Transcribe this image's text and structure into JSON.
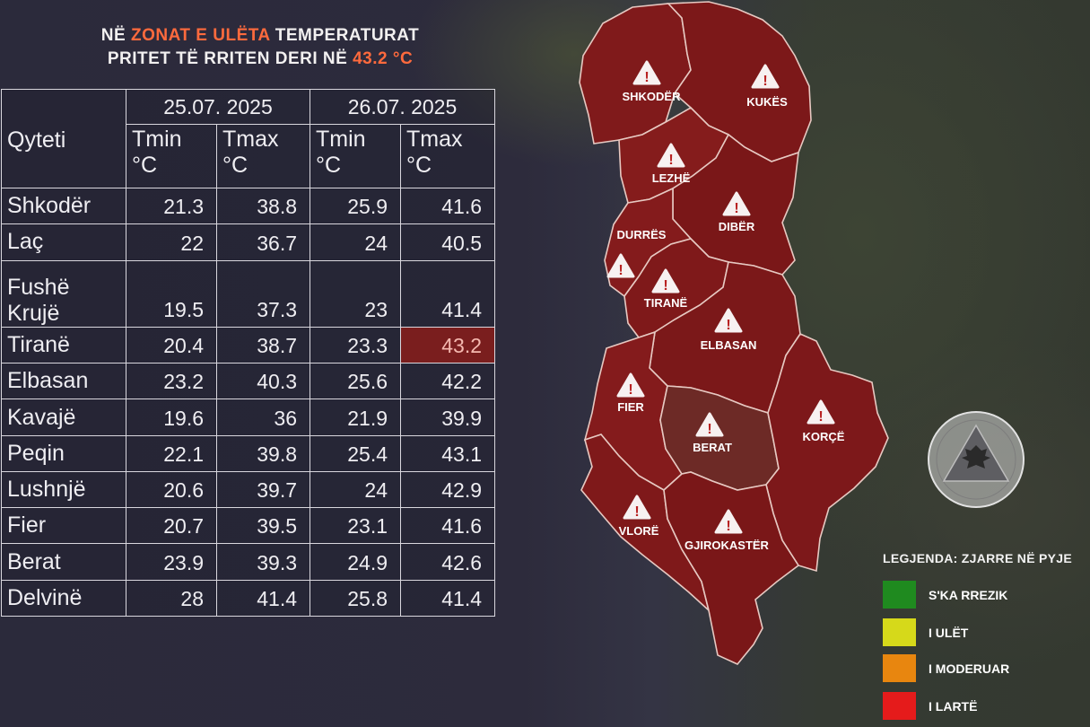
{
  "headline": {
    "line1_pre": "NË",
    "line1_accent": "ZONAT E ULËTA",
    "line1_post": "TEMPERATURAT",
    "line2_pre": "PRITET TË RRITEN DERI NË",
    "line2_accent": "43.2",
    "line2_unit": "°C"
  },
  "table": {
    "city_header": "Qyteti",
    "dates": [
      "25.07. 2025",
      "26.07. 2025"
    ],
    "tmin_label": "Tmin",
    "tmax_label": "Tmax",
    "unit_label": "°C",
    "rows": [
      {
        "city": "Shkodër",
        "tmin1": "21.3",
        "tmax1": "38.8",
        "tmin2": "25.9",
        "tmax2": "41.6"
      },
      {
        "city": "Laç",
        "tmin1": "22",
        "tmax1": "36.7",
        "tmin2": "24",
        "tmax2": "40.5"
      },
      {
        "city": "Fushë Krujë",
        "tmin1": "19.5",
        "tmax1": "37.3",
        "tmin2": "23",
        "tmax2": "41.4"
      },
      {
        "city": "Tiranë",
        "tmin1": "20.4",
        "tmax1": "38.7",
        "tmin2": "23.3",
        "tmax2": "43.2"
      },
      {
        "city": "Elbasan",
        "tmin1": "23.2",
        "tmax1": "40.3",
        "tmin2": "25.6",
        "tmax2": "42.2"
      },
      {
        "city": "Kavajë",
        "tmin1": "19.6",
        "tmax1": "36",
        "tmin2": "21.9",
        "tmax2": "39.9"
      },
      {
        "city": "Peqin",
        "tmin1": "22.1",
        "tmax1": "39.8",
        "tmin2": "25.4",
        "tmax2": "43.1"
      },
      {
        "city": "Lushnjë",
        "tmin1": "20.6",
        "tmax1": "39.7",
        "tmin2": "24",
        "tmax2": "42.9"
      },
      {
        "city": "Fier",
        "tmin1": "20.7",
        "tmax1": "39.5",
        "tmin2": "23.1",
        "tmax2": "41.6"
      },
      {
        "city": "Berat",
        "tmin1": "23.9",
        "tmax1": "39.3",
        "tmin2": "24.9",
        "tmax2": "42.6"
      },
      {
        "city": "Delvinë",
        "tmin1": "28",
        "tmax1": "41.4",
        "tmin2": "25.8",
        "tmax2": "41.4"
      }
    ],
    "highlight_color": "#7a1e1e"
  },
  "map": {
    "regions": [
      "SHKODËR",
      "KUKËS",
      "LEZHË",
      "DIBËR",
      "DURRËS",
      "TIRANË",
      "ELBASAN",
      "FIER",
      "BERAT",
      "KORÇË",
      "VLORË",
      "GJIROKASTËR"
    ],
    "warning_icon": "warning-triangle-icon",
    "fill_color": "#7e1a1a"
  },
  "legend": {
    "title": "LEGJENDA: ZJARRE NË PYJE",
    "items": [
      {
        "label": "S'KA RREZIK",
        "color": "#1f8a1f"
      },
      {
        "label": "I ULËT",
        "color": "#d6d91a"
      },
      {
        "label": "I MODERUAR",
        "color": "#e8860f"
      },
      {
        "label": "I LARTË",
        "color": "#e51b1b"
      }
    ]
  },
  "emblem": {
    "icon": "civil-protection-emblem-icon"
  }
}
